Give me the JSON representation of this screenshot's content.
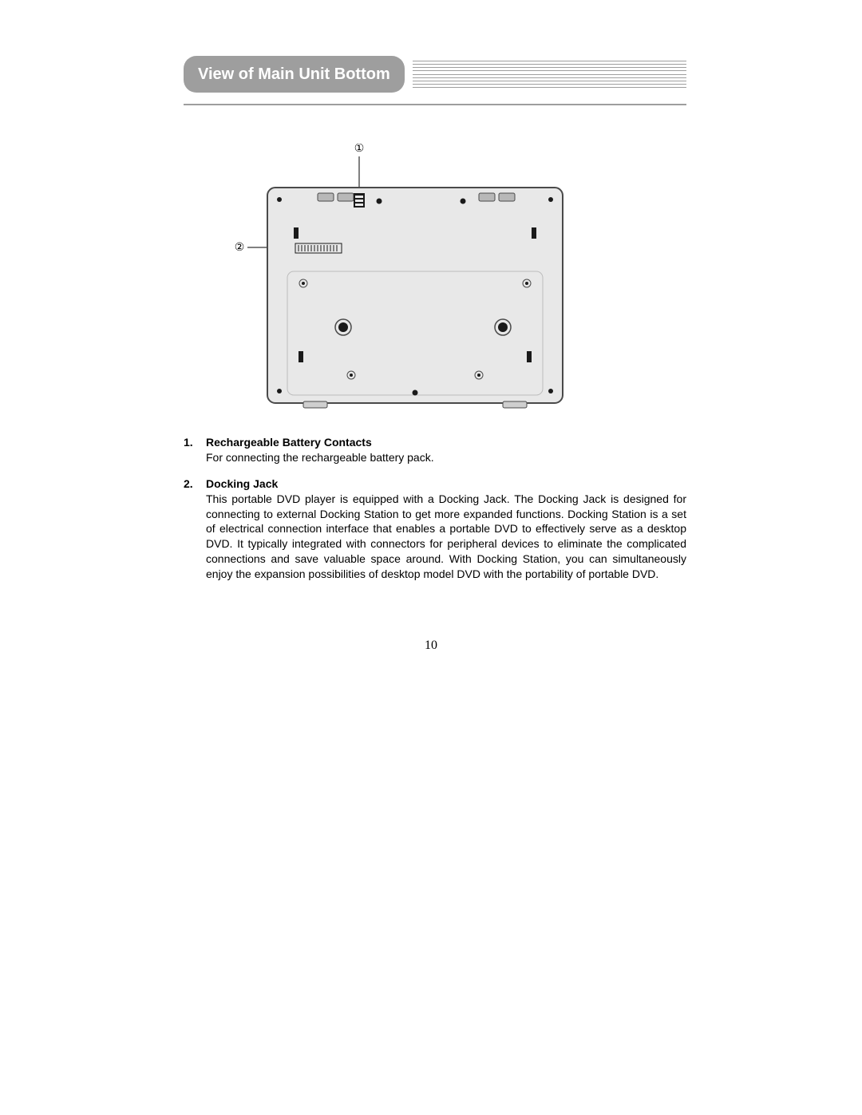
{
  "header": {
    "title": "View of Main Unit Bottom",
    "pill_bg": "#9e9e9e",
    "pill_fg": "#ffffff",
    "line_color": "#9e9e9e",
    "line_count": 9
  },
  "callouts": {
    "one": "①",
    "two": "②"
  },
  "items": [
    {
      "num": "1.",
      "title": "Rechargeable Battery Contacts",
      "desc": "For connecting the rechargeable battery pack."
    },
    {
      "num": "2.",
      "title": "Docking Jack",
      "desc": "This portable DVD player is equipped with a Docking Jack. The Docking Jack is designed for connecting to external Docking Station to get more expanded functions. Docking Station is a set of electrical connection interface that enables a portable DVD to effectively serve as a desktop DVD. It typically integrated with connectors for peripheral devices to eliminate the complicated connections and save valuable space around. With Docking Station, you can simultaneously enjoy the expansion possibilities of desktop model DVD with the portability of portable DVD."
    }
  ],
  "page_number": "10",
  "diagram": {
    "panel_fill": "#e8e8e8",
    "panel_stroke": "#4a4a4a",
    "feet_fill": "#cfcfcf",
    "latch_fill": "#b8b8b8",
    "contact_fill": "#1a1a1a",
    "line_color": "#000000"
  }
}
